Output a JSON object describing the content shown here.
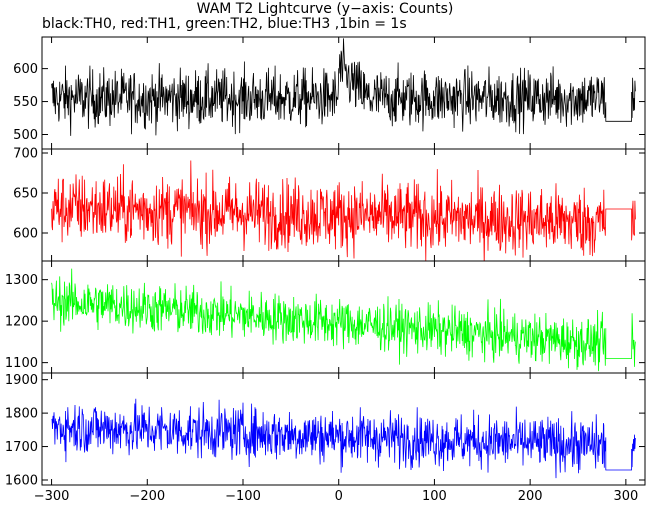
{
  "chart_data": {
    "type": "line",
    "title": "WAM T2 Lightcurve (y−axis: Counts)",
    "subtitle": "black:TH0, red:TH1, green:TH2, blue:TH3 ,1bin = 1s",
    "xlabel": "",
    "xlim": [
      -310,
      320
    ],
    "x_ticks": [
      -300,
      -200,
      -100,
      0,
      100,
      200,
      300
    ],
    "x_tick_labels": [
      "−300",
      "−200",
      "−100",
      "0",
      "100",
      "200",
      "300"
    ],
    "gap": [
      279,
      306
    ],
    "grid": false,
    "panels": [
      {
        "series_name": "TH0",
        "color": "#000000",
        "ylim": [
          478,
          648
        ],
        "y_ticks": [
          500,
          550,
          600
        ],
        "y_tick_labels": [
          "500",
          "550",
          "600"
        ],
        "mean": 555,
        "noise": 22,
        "trend": 0,
        "bump": {
          "start": 0,
          "end": 30,
          "height": 45
        },
        "gap_value": 520
      },
      {
        "series_name": "TH1",
        "color": "#ff0000",
        "ylim": [
          565,
          705
        ],
        "y_ticks": [
          600,
          650,
          700
        ],
        "y_tick_labels": [
          "600",
          "650",
          "700"
        ],
        "mean": 632,
        "noise": 22,
        "trend": -20,
        "bump": null,
        "gap_value": 630
      },
      {
        "series_name": "TH2",
        "color": "#00ff00",
        "ylim": [
          1075,
          1345
        ],
        "y_ticks": [
          1100,
          1200,
          1300
        ],
        "y_tick_labels": [
          "1100",
          "1200",
          "1300"
        ],
        "mean": 1250,
        "noise": 30,
        "trend": -110,
        "bump": null,
        "gap_value": 1110
      },
      {
        "series_name": "TH3",
        "color": "#0000ff",
        "ylim": [
          1585,
          1920
        ],
        "y_ticks": [
          1600,
          1700,
          1800,
          1900
        ],
        "y_tick_labels": [
          "1600",
          "1700",
          "1800",
          "1900"
        ],
        "mean": 1760,
        "noise": 40,
        "trend": -60,
        "bump": null,
        "gap_value": 1630
      }
    ]
  }
}
